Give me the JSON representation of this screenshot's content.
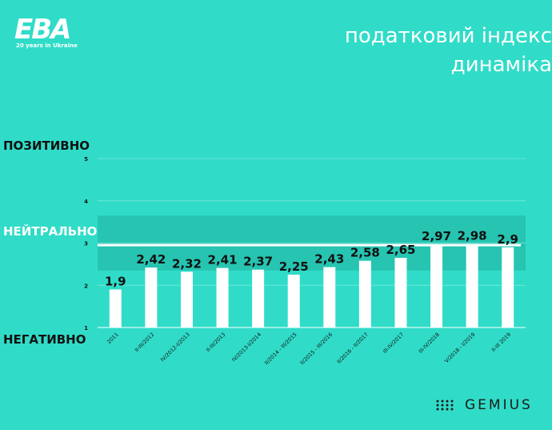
{
  "logo": {
    "main": "EBA",
    "sub": "20 years in Ukraine"
  },
  "title": {
    "line1": "податковий індекс",
    "line2": "динаміка"
  },
  "zones": {
    "positive": "ПОЗИТИВНО",
    "neutral": "НЕЙТРАЛЬНО",
    "negative": "НЕГАТИВНО"
  },
  "footer": {
    "brand": "GEMIUS"
  },
  "colors": {
    "background": "#30dcc8",
    "neutral_band": "#26c4b1",
    "bar": "#ffffff",
    "value_label": "#111111"
  },
  "chart_data": {
    "type": "bar",
    "categories": [
      "2011",
      "II-III/2012",
      "IV/2012-I/2013",
      "II-III/2013",
      "IV/2013-I/2014",
      "II/2014 - III/2015",
      "II/2015 - III/2016",
      "II/2016 - II/2017",
      "III-IV/2017",
      "III-IV/2018",
      "V/2018 - I/2019",
      "II-III 2019"
    ],
    "values": [
      1.9,
      2.42,
      2.32,
      2.41,
      2.37,
      2.25,
      2.43,
      2.58,
      2.65,
      2.97,
      2.98,
      2.9
    ],
    "value_labels": [
      "1,9",
      "2,42",
      "2,32",
      "2,41",
      "2,37",
      "2,25",
      "2,43",
      "2,58",
      "2,65",
      "2,97",
      "2,98",
      "2,9"
    ],
    "yticks": [
      "1",
      "2",
      "3",
      "4",
      "5"
    ],
    "ylim": [
      1,
      5
    ],
    "neutral_band": [
      2.35,
      3.65
    ],
    "reference_line": 2.95,
    "grid": true
  }
}
